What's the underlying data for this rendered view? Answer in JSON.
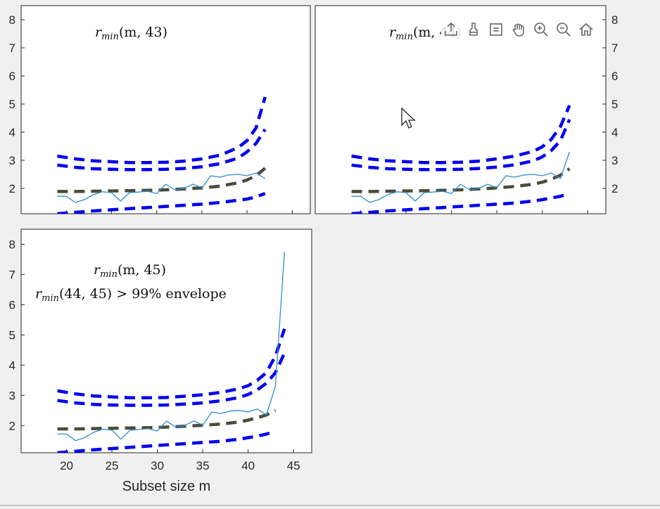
{
  "chart_data": [
    {
      "type": "line",
      "xlim": [
        15,
        47
      ],
      "ylim": [
        1.1,
        8.5
      ],
      "yticks": [
        2,
        3,
        4,
        5,
        6,
        7,
        8
      ],
      "ytick_labels": [
        "2",
        "3",
        "4",
        "5",
        "6",
        "7",
        "8"
      ],
      "y_axis_side": "left",
      "annotation": [
        "r_min(m, 43)"
      ],
      "x": [
        19,
        20,
        21,
        22,
        23,
        24,
        25,
        26,
        27,
        28,
        29,
        30,
        31,
        32,
        33,
        34,
        35,
        36,
        37,
        38,
        39,
        40,
        41,
        42,
        43
      ],
      "series": [
        {
          "role": "upper-99",
          "style": "dashed-blue-thick",
          "x": [
            19,
            21,
            23,
            25,
            27,
            29,
            31,
            33,
            35,
            37,
            39,
            40,
            41,
            42
          ],
          "values": [
            3.15,
            3.05,
            2.98,
            2.95,
            2.92,
            2.92,
            2.93,
            2.97,
            3.05,
            3.18,
            3.45,
            3.7,
            4.15,
            5.25
          ]
        },
        {
          "role": "upper-95",
          "style": "dashed-blue-thick",
          "x": [
            19,
            21,
            23,
            25,
            27,
            29,
            31,
            33,
            35,
            37,
            39,
            40,
            41,
            42
          ],
          "values": [
            2.83,
            2.75,
            2.7,
            2.68,
            2.67,
            2.67,
            2.68,
            2.71,
            2.77,
            2.88,
            3.08,
            3.3,
            3.6,
            4.1
          ]
        },
        {
          "role": "median",
          "style": "dashed-dark-thick",
          "x": [
            19,
            21,
            23,
            25,
            27,
            29,
            31,
            33,
            35,
            37,
            39,
            40,
            41,
            42
          ],
          "values": [
            1.89,
            1.89,
            1.9,
            1.91,
            1.92,
            1.93,
            1.95,
            1.98,
            2.02,
            2.08,
            2.2,
            2.3,
            2.45,
            2.72
          ]
        },
        {
          "role": "lower-1",
          "style": "dashed-blue-thick",
          "x": [
            19,
            21,
            23,
            25,
            27,
            29,
            31,
            33,
            35,
            37,
            39,
            40,
            41,
            42
          ],
          "values": [
            1.1,
            1.15,
            1.2,
            1.24,
            1.28,
            1.32,
            1.36,
            1.4,
            1.44,
            1.5,
            1.58,
            1.62,
            1.7,
            1.82
          ]
        },
        {
          "role": "observed",
          "style": "solid-thin",
          "x": [
            19,
            20,
            21,
            22,
            23,
            24,
            25,
            26,
            27,
            28,
            29,
            30,
            31,
            32,
            33,
            34,
            35,
            36,
            37,
            38,
            39,
            40,
            41,
            42
          ],
          "values": [
            1.72,
            1.72,
            1.5,
            1.6,
            1.78,
            1.88,
            1.85,
            1.55,
            1.85,
            1.87,
            1.9,
            1.82,
            2.15,
            1.95,
            2.0,
            2.15,
            2.02,
            2.45,
            2.4,
            2.48,
            2.5,
            2.45,
            2.55,
            2.35
          ]
        }
      ]
    },
    {
      "type": "line",
      "xlim": [
        15,
        47
      ],
      "ylim": [
        1.1,
        8.5
      ],
      "yticks": [
        2,
        3,
        4,
        5,
        6,
        7,
        8
      ],
      "ytick_labels": [
        "2",
        "3",
        "4",
        "5",
        "6",
        "7",
        "8"
      ],
      "y_axis_side": "right",
      "annotation": [
        "r_min(m, 44)"
      ],
      "series": [
        {
          "role": "upper-99",
          "style": "dashed-blue-thick",
          "x": [
            19,
            21,
            23,
            25,
            27,
            29,
            31,
            33,
            35,
            37,
            39,
            40,
            41,
            42,
            43
          ],
          "values": [
            3.15,
            3.05,
            2.98,
            2.95,
            2.92,
            2.92,
            2.93,
            2.97,
            3.05,
            3.15,
            3.32,
            3.48,
            3.75,
            4.2,
            4.95
          ]
        },
        {
          "role": "upper-95",
          "style": "dashed-blue-thick",
          "x": [
            19,
            21,
            23,
            25,
            27,
            29,
            31,
            33,
            35,
            37,
            39,
            40,
            41,
            42,
            43
          ],
          "values": [
            2.83,
            2.75,
            2.7,
            2.68,
            2.67,
            2.67,
            2.68,
            2.71,
            2.76,
            2.84,
            2.98,
            3.12,
            3.35,
            3.7,
            4.45
          ]
        },
        {
          "role": "median",
          "style": "dashed-dark-thick",
          "x": [
            19,
            21,
            23,
            25,
            27,
            29,
            31,
            33,
            35,
            37,
            39,
            40,
            41,
            42,
            43
          ],
          "values": [
            1.89,
            1.89,
            1.9,
            1.91,
            1.92,
            1.93,
            1.95,
            1.98,
            2.02,
            2.07,
            2.15,
            2.22,
            2.33,
            2.47,
            2.7
          ]
        },
        {
          "role": "lower-1",
          "style": "dashed-blue-thick",
          "x": [
            19,
            21,
            23,
            25,
            27,
            29,
            31,
            33,
            35,
            37,
            39,
            40,
            41,
            42,
            43
          ],
          "values": [
            1.1,
            1.15,
            1.2,
            1.24,
            1.28,
            1.32,
            1.36,
            1.4,
            1.44,
            1.48,
            1.55,
            1.6,
            1.66,
            1.72,
            1.82
          ]
        },
        {
          "role": "observed",
          "style": "solid-thin",
          "x": [
            19,
            20,
            21,
            22,
            23,
            24,
            25,
            26,
            27,
            28,
            29,
            30,
            31,
            32,
            33,
            34,
            35,
            36,
            37,
            38,
            39,
            40,
            41,
            42,
            43
          ],
          "values": [
            1.72,
            1.72,
            1.5,
            1.6,
            1.78,
            1.88,
            1.85,
            1.55,
            1.85,
            1.87,
            1.9,
            1.82,
            2.15,
            1.95,
            2.0,
            2.15,
            2.02,
            2.45,
            2.4,
            2.48,
            2.5,
            2.45,
            2.55,
            2.35,
            3.3
          ]
        }
      ]
    },
    {
      "type": "line",
      "xlim": [
        15,
        47
      ],
      "ylim": [
        1.1,
        8.5
      ],
      "xticks": [
        20,
        25,
        30,
        35,
        40,
        45
      ],
      "xtick_labels": [
        "20",
        "25",
        "30",
        "35",
        "40",
        "45"
      ],
      "yticks": [
        2,
        3,
        4,
        5,
        6,
        7,
        8
      ],
      "ytick_labels": [
        "2",
        "3",
        "4",
        "5",
        "6",
        "7",
        "8"
      ],
      "y_axis_side": "left",
      "xlabel": "Subset size m",
      "annotation": [
        "r_min(m, 45)",
        "r_min(44, 45) > 99% envelope"
      ],
      "series": [
        {
          "role": "upper-99",
          "style": "dashed-blue-thick",
          "x": [
            19,
            21,
            23,
            25,
            27,
            29,
            31,
            33,
            35,
            37,
            39,
            40,
            41,
            42,
            43,
            44
          ],
          "values": [
            3.15,
            3.05,
            2.98,
            2.95,
            2.92,
            2.92,
            2.93,
            2.97,
            3.02,
            3.1,
            3.22,
            3.32,
            3.5,
            3.75,
            4.3,
            5.2
          ]
        },
        {
          "role": "upper-95",
          "style": "dashed-blue-thick",
          "x": [
            19,
            21,
            23,
            25,
            27,
            29,
            31,
            33,
            35,
            37,
            39,
            40,
            41,
            42,
            43,
            44
          ],
          "values": [
            2.83,
            2.75,
            2.7,
            2.68,
            2.67,
            2.67,
            2.68,
            2.71,
            2.75,
            2.82,
            2.93,
            3.03,
            3.18,
            3.4,
            3.75,
            4.4
          ]
        },
        {
          "role": "median",
          "style": "dashed-dark-thick",
          "x": [
            19,
            21,
            23,
            25,
            27,
            29,
            31,
            33,
            35,
            37,
            39,
            40,
            41,
            42,
            43
          ],
          "values": [
            1.89,
            1.89,
            1.9,
            1.91,
            1.92,
            1.93,
            1.95,
            1.98,
            2.01,
            2.05,
            2.12,
            2.18,
            2.26,
            2.35,
            2.5
          ]
        },
        {
          "role": "lower-1",
          "style": "dashed-blue-thick",
          "x": [
            19,
            21,
            23,
            25,
            27,
            29,
            31,
            33,
            35,
            37,
            39,
            40,
            41,
            42,
            43
          ],
          "values": [
            1.1,
            1.15,
            1.2,
            1.24,
            1.28,
            1.32,
            1.36,
            1.4,
            1.44,
            1.48,
            1.55,
            1.6,
            1.65,
            1.72,
            1.8
          ]
        },
        {
          "role": "observed",
          "style": "solid-thin",
          "x": [
            19,
            20,
            21,
            22,
            23,
            24,
            25,
            26,
            27,
            28,
            29,
            30,
            31,
            32,
            33,
            34,
            35,
            36,
            37,
            38,
            39,
            40,
            41,
            42,
            43,
            44
          ],
          "values": [
            1.72,
            1.72,
            1.5,
            1.6,
            1.78,
            1.88,
            1.85,
            1.55,
            1.85,
            1.87,
            1.9,
            1.82,
            2.15,
            1.95,
            2.0,
            2.15,
            2.02,
            2.45,
            2.4,
            2.48,
            2.5,
            2.45,
            2.55,
            2.35,
            3.3,
            7.75
          ]
        }
      ]
    }
  ],
  "colors": {
    "envelope_blue": "#0000ee",
    "median_dark": "#4b4b3a",
    "observed_line": "#2b8fd0",
    "axes_bg": "#ffffff",
    "figure_bg": "#f0f0f0"
  },
  "toolbar": {
    "buttons": [
      "export-icon",
      "brush-icon",
      "datatip-icon",
      "pan-icon",
      "zoom-in-icon",
      "zoom-out-icon",
      "home-icon"
    ]
  }
}
